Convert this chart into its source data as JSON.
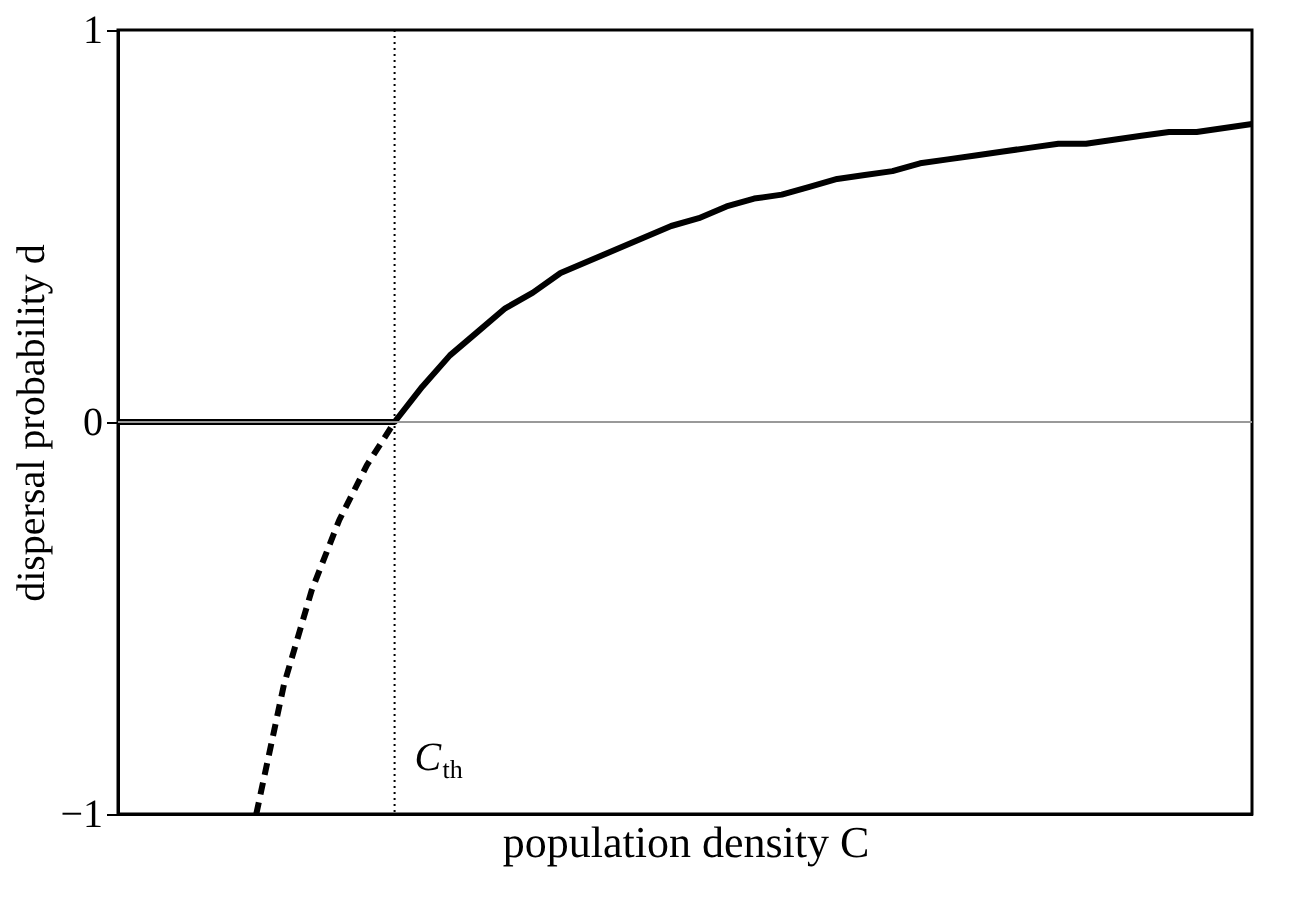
{
  "chart_data": {
    "type": "line",
    "xlabel": "population density C",
    "ylabel": "dispersal probability d",
    "categories": [
      null,
      null,
      null,
      null,
      null,
      null,
      null,
      null,
      null,
      null,
      null,
      null,
      null,
      null,
      null,
      null,
      null,
      null,
      null,
      null,
      null,
      null,
      null,
      null,
      null,
      null,
      null,
      null,
      null,
      null,
      null,
      null,
      null,
      null,
      null,
      null,
      null,
      null,
      null,
      null,
      null,
      null
    ],
    "ylim": [
      -1,
      1
    ],
    "yticks": [
      {
        "value": -1,
        "label": "−1"
      },
      0,
      1
    ],
    "tick_labels": "y",
    "grid": false,
    "series": [
      {
        "values": [
          0,
          0,
          0,
          0,
          0,
          0,
          0,
          0,
          0,
          0,
          0,
          0.09,
          0.17,
          0.23,
          0.29,
          0.33,
          0.38,
          0.41,
          0.44,
          0.47,
          0.5,
          0.52,
          0.55,
          0.57,
          0.58,
          0.6,
          0.62,
          0.63,
          0.64,
          0.66,
          0.67,
          0.68,
          0.69,
          0.7,
          0.71,
          0.71,
          0.72,
          0.73,
          0.74,
          0.74,
          0.75,
          0.76
        ],
        "color": "#000000",
        "line_style": "solid"
      },
      {
        "values": [
          null,
          null,
          null,
          null,
          null,
          -1,
          -0.67,
          -0.43,
          -0.25,
          -0.11,
          0,
          null,
          null,
          null,
          null,
          null,
          null,
          null,
          null,
          null,
          null,
          null,
          null,
          null,
          null,
          null,
          null,
          null,
          null,
          null,
          null,
          null,
          null,
          null,
          null,
          null,
          null,
          null,
          null,
          null,
          null,
          null
        ],
        "color": "#000000",
        "line_style": "dashed"
      }
    ],
    "ref_lines": [
      {
        "axis": "y",
        "value": 0,
        "color": "#999999",
        "line_style": "solid"
      }
    ],
    "annotations": [
      "C$_{th}$"
    ]
  }
}
